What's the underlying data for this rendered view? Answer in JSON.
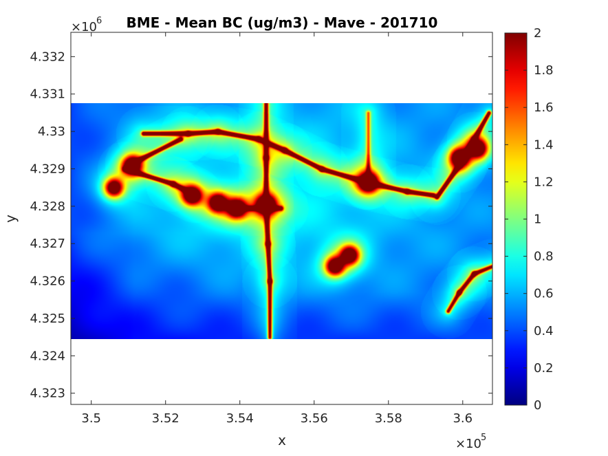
{
  "chart_data": {
    "type": "heatmap",
    "title": "BME - Mean BC (ug/m3) -  Mave - 201710",
    "xlabel": "x",
    "ylabel": "y",
    "x_multiplier": {
      "base": "×10",
      "exponent": "5"
    },
    "y_multiplier": {
      "base": "×10",
      "exponent": "6"
    },
    "xlim": [
      349450,
      360800
    ],
    "ylim": [
      4322700,
      4332650
    ],
    "x_ticks": [
      {
        "value": 350000,
        "label": "3.5"
      },
      {
        "value": 352000,
        "label": "3.52"
      },
      {
        "value": 354000,
        "label": "3.54"
      },
      {
        "value": 356000,
        "label": "3.56"
      },
      {
        "value": 358000,
        "label": "3.58"
      },
      {
        "value": 360000,
        "label": "3.6"
      }
    ],
    "y_ticks": [
      {
        "value": 4323000,
        "label": "4.323"
      },
      {
        "value": 4324000,
        "label": "4.324"
      },
      {
        "value": 4325000,
        "label": "4.325"
      },
      {
        "value": 4326000,
        "label": "4.326"
      },
      {
        "value": 4327000,
        "label": "4.327"
      },
      {
        "value": 4328000,
        "label": "4.328"
      },
      {
        "value": 4329000,
        "label": "4.329"
      },
      {
        "value": 4330000,
        "label": "4.33"
      },
      {
        "value": 4331000,
        "label": "4.331"
      },
      {
        "value": 4332000,
        "label": "4.332"
      }
    ],
    "data_extent": {
      "x": [
        349450,
        360800
      ],
      "y": [
        4324450,
        4330750
      ]
    },
    "colormap": "jet",
    "color_range": [
      0,
      2
    ],
    "colorbar_ticks": [
      {
        "value": 0,
        "label": "0"
      },
      {
        "value": 0.2,
        "label": "0.2"
      },
      {
        "value": 0.4,
        "label": "0.4"
      },
      {
        "value": 0.6,
        "label": "0.6"
      },
      {
        "value": 0.8,
        "label": "0.8"
      },
      {
        "value": 1,
        "label": "1"
      },
      {
        "value": 1.2,
        "label": "1.2"
      },
      {
        "value": 1.4,
        "label": "1.4"
      },
      {
        "value": 1.6,
        "label": "1.6"
      },
      {
        "value": 1.8,
        "label": "1.8"
      },
      {
        "value": 2,
        "label": "2"
      }
    ],
    "background_value": 0.5,
    "hotspots": [
      {
        "x": 354700,
        "y": 4328050,
        "value": 2
      },
      {
        "x": 353900,
        "y": 4327950,
        "value": 2
      },
      {
        "x": 357450,
        "y": 4328650,
        "value": 2
      },
      {
        "x": 356950,
        "y": 4326700,
        "value": 2
      },
      {
        "x": 356550,
        "y": 4326400,
        "value": 2
      },
      {
        "x": 352700,
        "y": 4328300,
        "value": 2
      },
      {
        "x": 351100,
        "y": 4329100,
        "value": 2
      },
      {
        "x": 353400,
        "y": 4328100,
        "value": 2
      },
      {
        "x": 359900,
        "y": 4329300,
        "value": 2
      },
      {
        "x": 360400,
        "y": 4329550,
        "value": 2
      },
      {
        "x": 350600,
        "y": 4328500,
        "value": 2
      }
    ],
    "roads": [
      {
        "points": [
          [
            351400,
            4329950
          ],
          [
            352600,
            4329950
          ],
          [
            353400,
            4330000
          ],
          [
            354500,
            4329800
          ],
          [
            355200,
            4329500
          ],
          [
            356200,
            4329000
          ],
          [
            357400,
            4328650
          ],
          [
            358500,
            4328400
          ],
          [
            359200,
            4328300
          ]
        ],
        "value": 1.9
      },
      {
        "points": [
          [
            354700,
            4330750
          ],
          [
            354700,
            4329300
          ],
          [
            354700,
            4328050
          ],
          [
            354750,
            4327000
          ],
          [
            354800,
            4326000
          ],
          [
            354800,
            4324500
          ]
        ],
        "value": 1.7
      },
      {
        "points": [
          [
            350900,
            4329000
          ],
          [
            352200,
            4328600
          ],
          [
            352800,
            4328300
          ]
        ],
        "value": 1.8
      },
      {
        "points": [
          [
            351100,
            4329150
          ],
          [
            352400,
            4329800
          ]
        ],
        "value": 1.8
      },
      {
        "points": [
          [
            359300,
            4328250
          ],
          [
            359900,
            4329100
          ],
          [
            360300,
            4329800
          ],
          [
            360700,
            4330500
          ]
        ],
        "value": 1.9
      },
      {
        "points": [
          [
            359600,
            4325200
          ],
          [
            359900,
            4325700
          ],
          [
            360300,
            4326200
          ],
          [
            360800,
            4326400
          ]
        ],
        "value": 1.6
      },
      {
        "points": [
          [
            357450,
            4328650
          ],
          [
            357450,
            4330500
          ]
        ],
        "value": 1.0
      },
      {
        "points": [
          [
            354100,
            4327950
          ],
          [
            355100,
            4327950
          ]
        ],
        "value": 1.5
      }
    ]
  }
}
